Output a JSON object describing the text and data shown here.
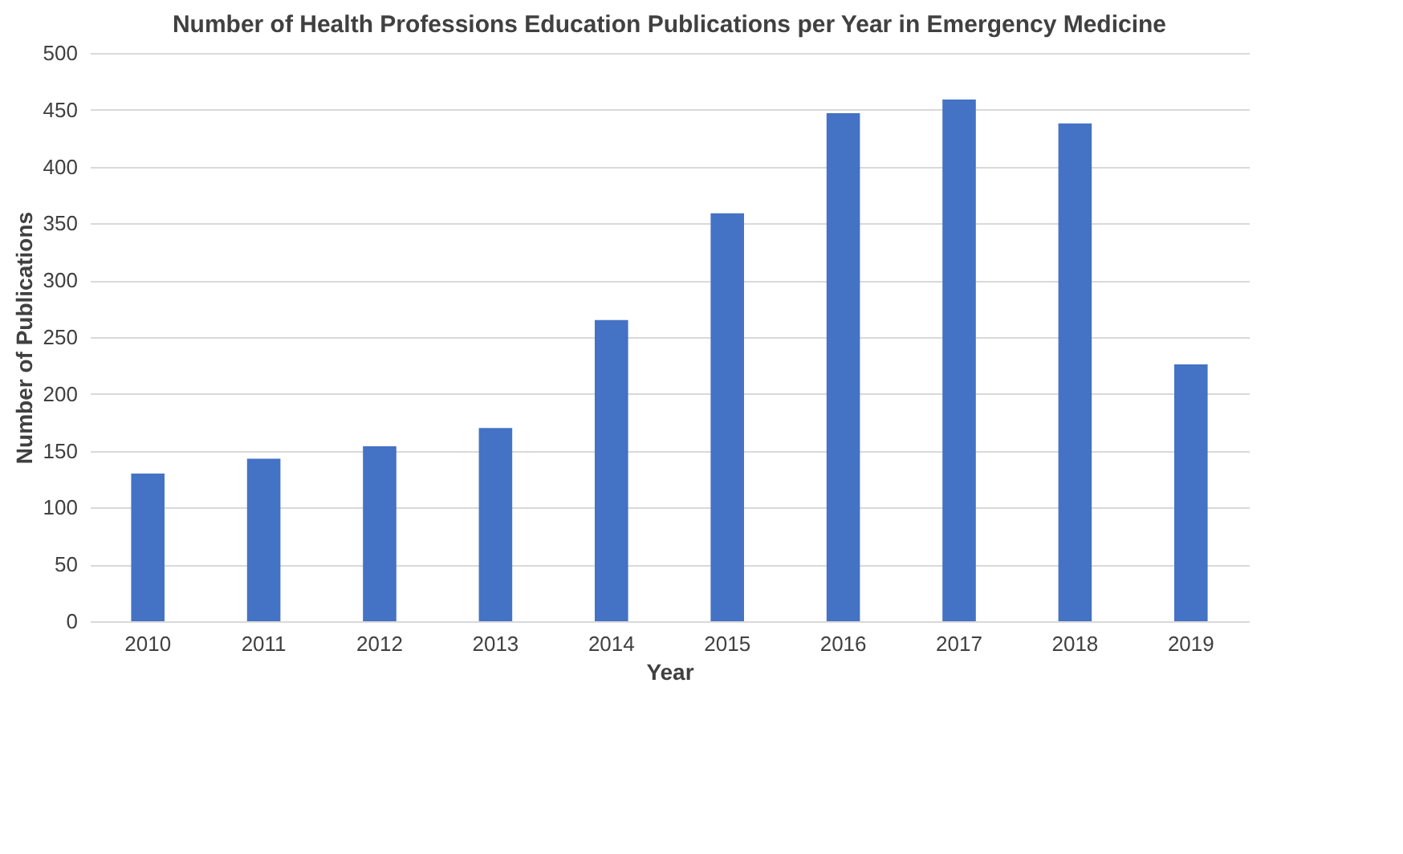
{
  "chart_data": {
    "type": "bar",
    "title": "Number of Health Professions Education Publications per Year in Emergency Medicine",
    "xlabel": "Year",
    "ylabel": "Number of Publications",
    "categories": [
      "2010",
      "2011",
      "2012",
      "2013",
      "2014",
      "2015",
      "2016",
      "2017",
      "2018",
      "2019"
    ],
    "values": [
      130,
      143,
      154,
      170,
      265,
      359,
      447,
      459,
      438,
      226
    ],
    "color": "#4472c4",
    "ylim": [
      0,
      500
    ],
    "yticks": [
      0,
      50,
      100,
      150,
      200,
      250,
      300,
      350,
      400,
      450,
      500
    ],
    "grid": "y"
  }
}
